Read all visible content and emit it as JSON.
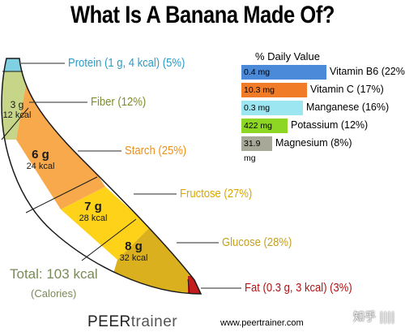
{
  "title": "What Is A Banana Made Of?",
  "segments": [
    {
      "key": "protein",
      "label": "Protein (1 g, 4 kcal) (5%)",
      "color": "#7fd0e2",
      "label_color": "#2a9cc8"
    },
    {
      "key": "fiber",
      "label": "Fiber (12%)",
      "grams": "3 g",
      "kcal": "12 kcal",
      "color": "#c6d588",
      "label_color": "#7f8c2c"
    },
    {
      "key": "starch",
      "label": "Starch (25%)",
      "grams": "6 g",
      "kcal": "24 kcal",
      "color": "#f7a94c",
      "label_color": "#ee8f16"
    },
    {
      "key": "fructose",
      "label": "Fructose (27%)",
      "grams": "7 g",
      "kcal": "28 kcal",
      "color": "#ffd21a",
      "label_color": "#d8a800"
    },
    {
      "key": "glucose",
      "label": "Glucose (28%)",
      "grams": "8 g",
      "kcal": "32 kcal",
      "color": "#dab01e",
      "label_color": "#c5a020"
    },
    {
      "key": "fat",
      "label": "Fat (0.3 g, 3 kcal) (3%)",
      "color": "#c41d1d",
      "label_color": "#b01414"
    }
  ],
  "total": {
    "value": "Total: 103 kcal",
    "unit": "(Calories)"
  },
  "daily_value": {
    "title": "% Daily Value",
    "rows": [
      {
        "amount": "0.4 mg",
        "label": "Vitamin B6 (22%)",
        "percent": 22,
        "color": "#4a8ad8"
      },
      {
        "amount": "10.3 mg",
        "label": "Vitamin C (17%)",
        "percent": 17,
        "color": "#f07c28"
      },
      {
        "amount": "0.3 mg",
        "label": "Manganese (16%)",
        "percent": 16,
        "color": "#9ce6f2"
      },
      {
        "amount": "422 mg",
        "label": "Potassium (12%)",
        "percent": 12,
        "color": "#8ed624"
      },
      {
        "amount": "31.9 mg",
        "label": "Magnesium (8%)",
        "percent": 8,
        "color": "#a8a898"
      }
    ]
  },
  "brand": {
    "part1": "PEER",
    "part2": "trainer"
  },
  "url": "www.peertrainer.com",
  "watermark": "知乎 ||||"
}
